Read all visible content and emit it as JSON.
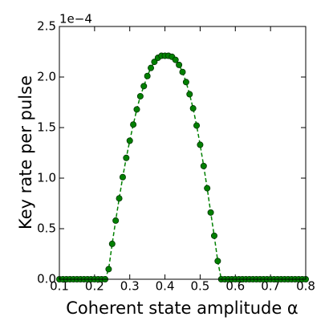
{
  "chart_data": {
    "type": "line",
    "xlabel": "Coherent state amplitude α",
    "ylabel": "Key rate per pulse",
    "y_offset_label": "1e−4",
    "x": [
      0.1,
      0.11,
      0.12,
      0.13,
      0.14,
      0.15,
      0.16,
      0.17,
      0.18,
      0.19,
      0.2,
      0.21,
      0.22,
      0.23,
      0.24,
      0.25,
      0.26,
      0.27,
      0.28,
      0.29,
      0.3,
      0.31,
      0.32,
      0.33,
      0.34,
      0.35,
      0.36,
      0.37,
      0.38,
      0.39,
      0.4,
      0.41,
      0.42,
      0.43,
      0.44,
      0.45,
      0.46,
      0.47,
      0.48,
      0.49,
      0.5,
      0.51,
      0.52,
      0.53,
      0.54,
      0.55,
      0.56,
      0.57,
      0.58,
      0.59,
      0.6,
      0.61,
      0.62,
      0.63,
      0.64,
      0.65,
      0.66,
      0.67,
      0.68,
      0.69,
      0.7,
      0.71,
      0.72,
      0.73,
      0.74,
      0.75,
      0.76,
      0.77,
      0.78,
      0.79,
      0.8
    ],
    "series": [
      {
        "color": "#008000",
        "values": [
          0,
          0,
          0,
          0,
          0,
          0,
          0,
          0,
          0,
          0,
          0,
          0,
          0,
          0,
          0.1,
          0.35,
          0.58,
          0.8,
          1.01,
          1.2,
          1.37,
          1.53,
          1.68,
          1.81,
          1.91,
          2.01,
          2.09,
          2.15,
          2.19,
          2.21,
          2.21,
          2.21,
          2.2,
          2.17,
          2.12,
          2.05,
          1.95,
          1.83,
          1.69,
          1.52,
          1.33,
          1.12,
          0.9,
          0.66,
          0.43,
          0.18,
          0,
          0,
          0,
          0,
          0,
          0,
          0,
          0,
          0,
          0,
          0,
          0,
          0,
          0,
          0,
          0,
          0,
          0,
          0,
          0,
          0,
          0,
          0,
          0,
          0
        ]
      }
    ],
    "xlim": [
      0.1,
      0.8
    ],
    "xticks": [
      0.1,
      0.2,
      0.3,
      0.4,
      0.5,
      0.6,
      0.7,
      0.8
    ],
    "ylim": [
      0,
      2.5
    ],
    "yticks": [
      {
        "value": 0,
        "label": "0.0"
      },
      0.5,
      {
        "value": 1,
        "label": "1.0"
      },
      1.5,
      {
        "value": 2,
        "label": "2.0"
      },
      2.5
    ],
    "grid": false
  }
}
